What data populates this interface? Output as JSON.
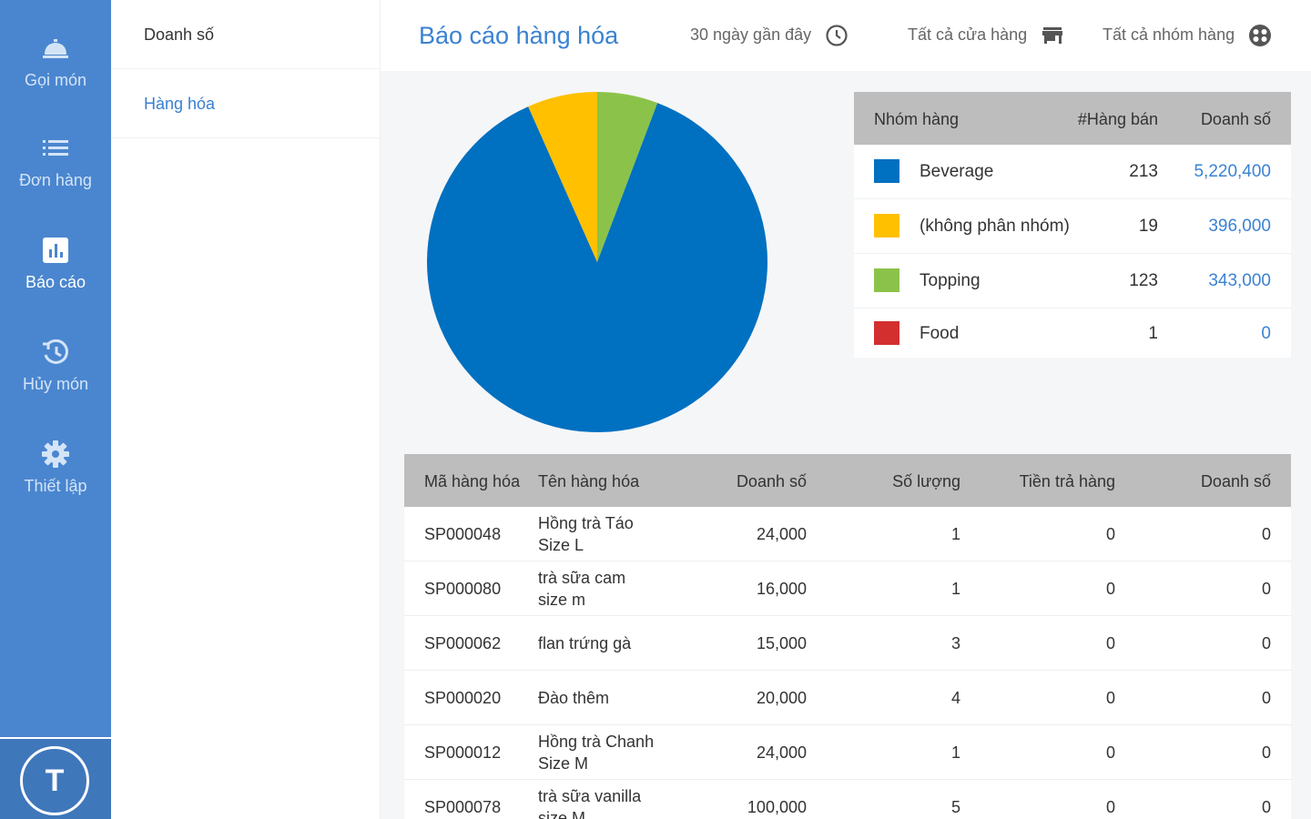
{
  "nav": {
    "items": [
      {
        "label": "Gọi món",
        "icon": "bell-icon"
      },
      {
        "label": "Đơn hàng",
        "icon": "list-icon"
      },
      {
        "label": "Báo cáo",
        "icon": "chart-icon"
      },
      {
        "label": "Hủy món",
        "icon": "history-icon"
      },
      {
        "label": "Thiết lập",
        "icon": "gear-icon"
      }
    ],
    "active": "Báo cáo",
    "avatar": "T"
  },
  "submenu": {
    "items": [
      "Doanh số",
      "Hàng hóa"
    ],
    "active": "Hàng hóa"
  },
  "header": {
    "title": "Báo cáo hàng hóa",
    "filters": [
      {
        "label": "30 ngày gần đây",
        "icon": "clock-icon"
      },
      {
        "label": "Tất cả cửa hàng",
        "icon": "store-icon"
      },
      {
        "label": "Tất cả nhóm hàng",
        "icon": "category-icon"
      }
    ]
  },
  "colors": {
    "accent": "#3a82d2",
    "nav": "#4a86cf",
    "beverage": "#0070c0",
    "none": "#ffc000",
    "topping": "#8bc34a",
    "food": "#d32f2f"
  },
  "chart_data": {
    "type": "pie",
    "labels": [
      "Beverage",
      "(không phân nhóm)",
      "Topping",
      "Food"
    ],
    "values": [
      5220400,
      396000,
      343000,
      0
    ]
  },
  "summary": {
    "headers": [
      "Nhóm hàng",
      "#Hàng bán",
      "Doanh số"
    ],
    "rows": [
      {
        "name": "Beverage",
        "qty": "213",
        "revenue": "5,220,400",
        "color": "#0070c0"
      },
      {
        "name": "(không phân nhóm)",
        "qty": "19",
        "revenue": "396,000",
        "color": "#ffc000"
      },
      {
        "name": "Topping",
        "qty": "123",
        "revenue": "343,000",
        "color": "#8bc34a"
      },
      {
        "name": "Food",
        "qty": "1",
        "revenue": "0",
        "color": "#d32f2f"
      }
    ]
  },
  "details": {
    "headers": [
      "Mã hàng hóa",
      "Tên hàng hóa",
      "Doanh số",
      "Số lượng",
      "Tiền trả hàng",
      "Doanh số"
    ],
    "rows": [
      {
        "code": "SP000048",
        "name": [
          "Hồng trà Táo",
          "Size L"
        ],
        "sales": "24,000",
        "qty": "1",
        "returns": "0",
        "revenue": "0"
      },
      {
        "code": "SP000080",
        "name": [
          "trà sữa cam",
          "size m"
        ],
        "sales": "16,000",
        "qty": "1",
        "returns": "0",
        "revenue": "0"
      },
      {
        "code": "SP000062",
        "name": [
          "flan trứng gà"
        ],
        "sales": "15,000",
        "qty": "3",
        "returns": "0",
        "revenue": "0"
      },
      {
        "code": "SP000020",
        "name": [
          "Đào thêm"
        ],
        "sales": "20,000",
        "qty": "4",
        "returns": "0",
        "revenue": "0"
      },
      {
        "code": "SP000012",
        "name": [
          "Hồng trà Chanh",
          "Size M"
        ],
        "sales": "24,000",
        "qty": "1",
        "returns": "0",
        "revenue": "0"
      },
      {
        "code": "SP000078",
        "name": [
          "trà sữa vanilla",
          "size M"
        ],
        "sales": "100,000",
        "qty": "5",
        "returns": "0",
        "revenue": "0"
      }
    ]
  }
}
